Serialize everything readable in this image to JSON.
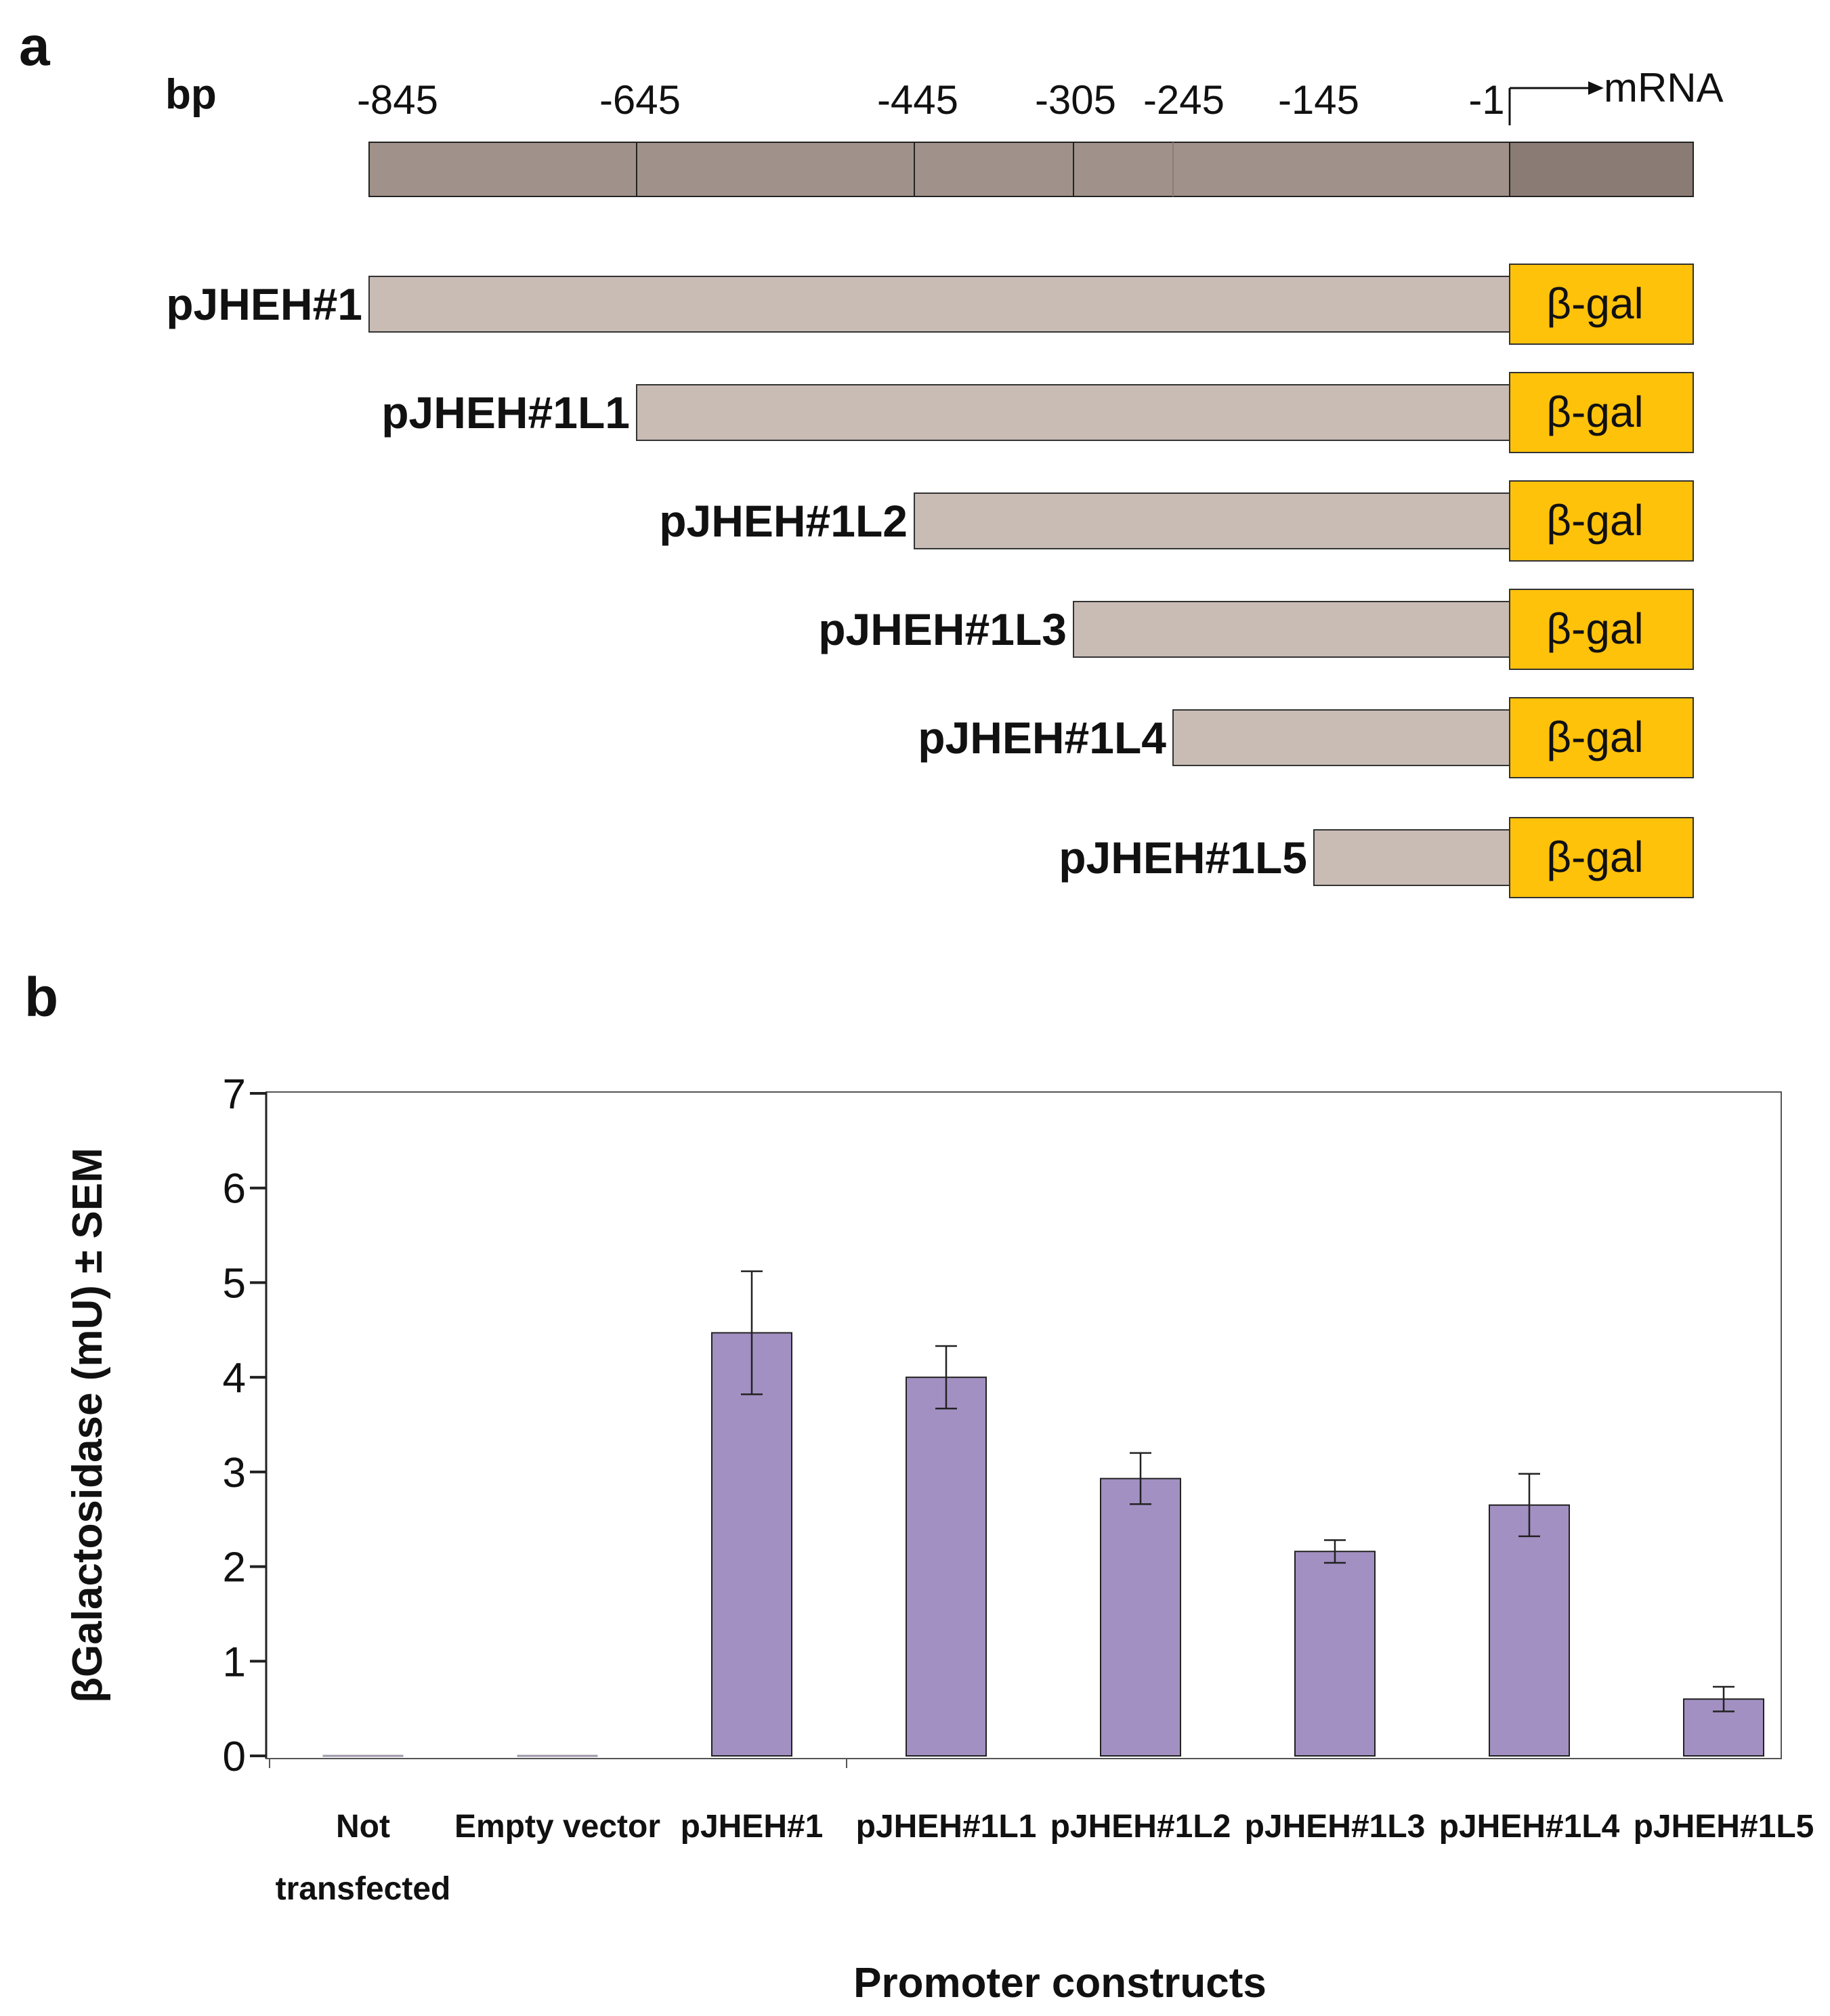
{
  "panel_a": {
    "letter": "a",
    "unit_label": "bp",
    "positions": [
      "-845",
      "-645",
      "-445",
      "-305",
      "-245",
      "-145",
      "-1"
    ],
    "transcript_label": "mRNA",
    "reporter_label": "β-gal",
    "constructs": [
      {
        "name": "pJHEH#1",
        "start": "-845"
      },
      {
        "name": "pJHEH#1L1",
        "start": "-645"
      },
      {
        "name": "pJHEH#1L2",
        "start": "-445"
      },
      {
        "name": "pJHEH#1L3",
        "start": "-305"
      },
      {
        "name": "pJHEH#1L4",
        "start": "-245"
      },
      {
        "name": "pJHEH#1L5",
        "start": "-145"
      }
    ],
    "colors": {
      "promoter_bar": "#a0928a",
      "reporter_bar": "#8a7c75",
      "construct_bar": "#c8bcb5",
      "reporter_box": "#ffc20a"
    }
  },
  "panel_b": {
    "letter": "b"
  },
  "chart_data": {
    "type": "bar",
    "categories": [
      "Not transfected",
      "Empty vector",
      "pJHEH#1",
      "pJHEH#1L1",
      "pJHEH#1L2",
      "pJHEH#1L3",
      "pJHEH#1L4",
      "pJHEH#1L5"
    ],
    "category_lines": [
      [
        "Not",
        "transfected"
      ],
      [
        "Empty vector"
      ],
      [
        "pJHEH#1"
      ],
      [
        "pJHEH#1L1"
      ],
      [
        "pJHEH#1L2"
      ],
      [
        "pJHEH#1L3"
      ],
      [
        "pJHEH#1L4"
      ],
      [
        "pJHEH#1L5"
      ]
    ],
    "values": [
      0,
      0,
      4.47,
      4.0,
      2.93,
      2.16,
      2.65,
      0.6
    ],
    "errors": [
      0,
      0,
      0.65,
      0.33,
      0.27,
      0.12,
      0.33,
      0.13
    ],
    "title": "",
    "xlabel": "Promoter constructs",
    "ylabel": "βGalactosidase (mU) ± SEM",
    "ylim": [
      0,
      7
    ],
    "yticks": [
      0,
      1,
      2,
      3,
      4,
      5,
      6,
      7
    ],
    "bar_color": "#a390c2",
    "grid": false
  }
}
